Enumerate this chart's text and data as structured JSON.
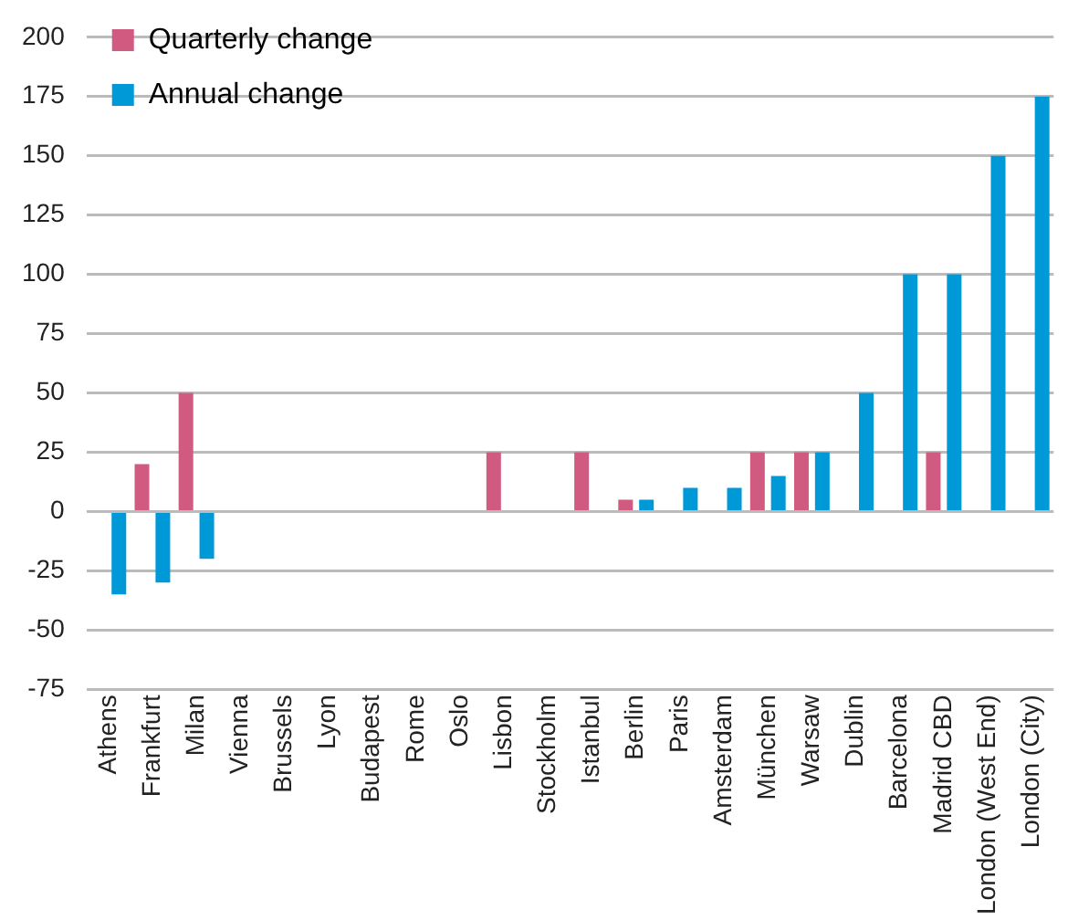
{
  "chart_data": {
    "type": "bar",
    "categories": [
      "Athens",
      "Frankfurt",
      "Milan",
      "Vienna",
      "Brussels",
      "Lyon",
      "Budapest",
      "Rome",
      "Oslo",
      "Lisbon",
      "Stockholm",
      "Istanbul",
      "Berlin",
      "Paris",
      "Amsterdam",
      "München",
      "Warsaw",
      "Dublin",
      "Barcelona",
      "Madrid CBD",
      "London (West End)",
      "London (City)"
    ],
    "series": [
      {
        "name": "Quarterly change",
        "color": "#d05a80",
        "values": [
          0,
          20,
          50,
          0,
          0,
          0,
          0,
          0,
          0,
          25,
          0,
          25,
          5,
          0,
          0,
          25,
          25,
          0,
          0,
          25,
          0,
          0
        ]
      },
      {
        "name": "Annual change",
        "color": "#0099d8",
        "values": [
          -35,
          -30,
          -20,
          0,
          0,
          0,
          0,
          0,
          0,
          0,
          0,
          0,
          5,
          10,
          10,
          15,
          25,
          50,
          100,
          100,
          150,
          175
        ]
      }
    ],
    "ylim": [
      -75,
      200
    ],
    "yticks": [
      -75,
      -50,
      -25,
      0,
      25,
      50,
      75,
      100,
      125,
      150,
      175,
      200
    ],
    "grid": "y",
    "legend": "top left"
  }
}
